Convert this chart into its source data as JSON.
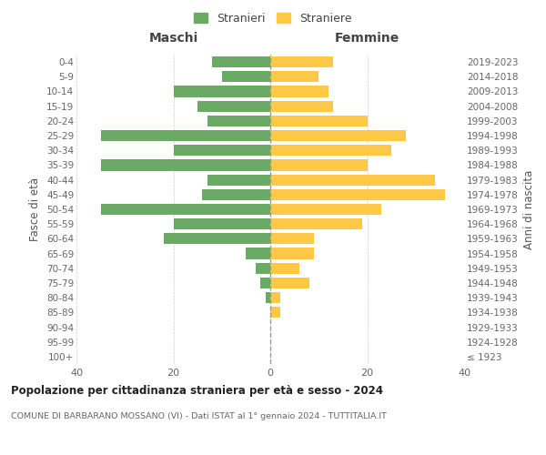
{
  "age_groups": [
    "100+",
    "95-99",
    "90-94",
    "85-89",
    "80-84",
    "75-79",
    "70-74",
    "65-69",
    "60-64",
    "55-59",
    "50-54",
    "45-49",
    "40-44",
    "35-39",
    "30-34",
    "25-29",
    "20-24",
    "15-19",
    "10-14",
    "5-9",
    "0-4"
  ],
  "birth_years": [
    "≤ 1923",
    "1924-1928",
    "1929-1933",
    "1934-1938",
    "1939-1943",
    "1944-1948",
    "1949-1953",
    "1954-1958",
    "1959-1963",
    "1964-1968",
    "1969-1973",
    "1974-1978",
    "1979-1983",
    "1984-1988",
    "1989-1993",
    "1994-1998",
    "1999-2003",
    "2004-2008",
    "2009-2013",
    "2014-2018",
    "2019-2023"
  ],
  "maschi": [
    0,
    0,
    0,
    0,
    1,
    2,
    3,
    5,
    22,
    20,
    35,
    14,
    13,
    35,
    20,
    35,
    13,
    15,
    20,
    10,
    12
  ],
  "femmine": [
    0,
    0,
    0,
    2,
    2,
    8,
    6,
    9,
    9,
    19,
    23,
    36,
    34,
    20,
    25,
    28,
    20,
    13,
    12,
    10,
    13
  ],
  "color_maschi": "#6aaa64",
  "color_femmine": "#ffc845",
  "title": "Popolazione per cittadinanza straniera per età e sesso - 2024",
  "subtitle": "COMUNE DI BARBARANO MOSSANO (VI) - Dati ISTAT al 1° gennaio 2024 - TUTTITALIA.IT",
  "label_maschi": "Stranieri",
  "label_femmine": "Straniere",
  "xlabel_left": "Maschi",
  "xlabel_right": "Femmine",
  "ylabel_left": "Fasce di età",
  "ylabel_right": "Anni di nascita",
  "xlim": 40,
  "background_color": "#ffffff"
}
